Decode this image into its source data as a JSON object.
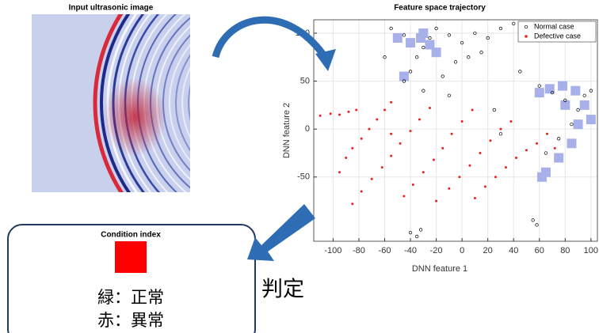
{
  "image_panel": {
    "title": "Input ultrasonic image"
  },
  "chart_data": {
    "type": "scatter",
    "title": "Feature space trajectory",
    "x_label": "DNN feature 1",
    "y_label": "DNN feature 2",
    "xlim": [
      -115,
      105
    ],
    "ylim": [
      -117,
      114
    ],
    "xticks": [
      -100,
      -80,
      -60,
      -40,
      -20,
      0,
      20,
      40,
      60,
      80,
      100
    ],
    "yticks": [
      -50,
      0,
      50,
      100
    ],
    "grid": true,
    "legend": "top-right",
    "trajectory": {
      "color": "#a7b0e8",
      "x": [
        -40,
        -32,
        -25,
        -45,
        -20,
        -30,
        -50,
        60,
        68,
        78,
        88,
        95,
        90,
        85,
        75,
        65,
        62,
        100,
        80
      ],
      "y": [
        90,
        95,
        88,
        55,
        80,
        100,
        95,
        38,
        42,
        45,
        40,
        25,
        5,
        -15,
        -30,
        -45,
        -50,
        10,
        25
      ]
    },
    "series": [
      {
        "name": "Defective case",
        "color": "#e8231a",
        "x": [
          -110,
          -102,
          -95,
          -88,
          -82,
          -95,
          -90,
          -85,
          -78,
          -72,
          -66,
          -60,
          -55,
          -85,
          -78,
          -70,
          -62,
          -55,
          -48,
          -40,
          -33,
          -25,
          -45,
          -38,
          -30,
          -22,
          -15,
          -8,
          0,
          8,
          -10,
          -2,
          6,
          14,
          22,
          30,
          38,
          10,
          18,
          26,
          34,
          42,
          50,
          58,
          66,
          72,
          -55,
          -20
        ],
        "y": [
          14,
          16,
          15,
          18,
          20,
          -45,
          -30,
          -20,
          -10,
          0,
          10,
          20,
          28,
          -78,
          -65,
          -52,
          -40,
          -28,
          -15,
          -2,
          10,
          22,
          -70,
          -58,
          -45,
          -32,
          -20,
          -5,
          8,
          20,
          -62,
          -50,
          -38,
          -25,
          -12,
          0,
          8,
          -72,
          -60,
          -50,
          -40,
          -30,
          -22,
          -15,
          -5,
          -20,
          -5,
          -75
        ]
      },
      {
        "name": "Normal case",
        "color": "#000000",
        "x": [
          -45,
          -40,
          -35,
          -30,
          -25,
          -20,
          -10,
          0,
          10,
          20,
          30,
          -5,
          5,
          15,
          -15,
          -45,
          -30,
          -10,
          60,
          70,
          80,
          90,
          95,
          85,
          75,
          65,
          100,
          30,
          25,
          -40,
          -35,
          -32,
          55,
          58,
          -60,
          -55,
          40,
          45
        ],
        "y": [
          50,
          60,
          75,
          85,
          95,
          105,
          98,
          90,
          100,
          95,
          105,
          70,
          75,
          80,
          55,
          98,
          40,
          35,
          45,
          38,
          30,
          20,
          35,
          5,
          -10,
          -25,
          40,
          -5,
          20,
          -108,
          -112,
          -105,
          -95,
          -100,
          75,
          105,
          110,
          60
        ]
      }
    ]
  },
  "condition_panel": {
    "title": "Condition index",
    "indicator_color": "#ff0000",
    "lines": [
      "緑：正常",
      "赤：異常"
    ]
  },
  "judgement": "判定"
}
